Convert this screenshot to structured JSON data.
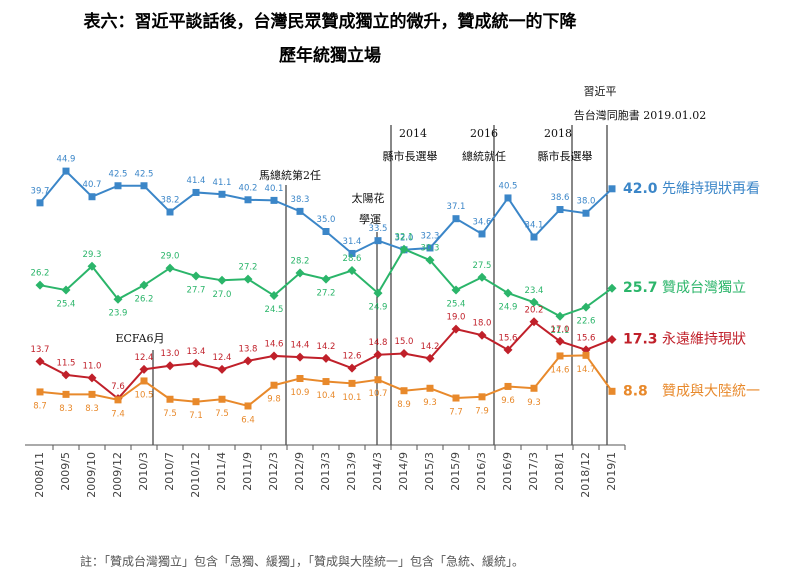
{
  "chart_data": {
    "type": "line",
    "title": "表六：習近平談話後，台灣民眾贊成獨立的微升，贊成統一的下降",
    "subtitle": "歷年統獨立場",
    "categories": [
      "2008/11",
      "2009/5",
      "2009/10",
      "2009/12",
      "2010/3",
      "2010/7",
      "2010/12",
      "2011/4",
      "2011/9",
      "2012/3",
      "2012/9",
      "2013/3",
      "2013/9",
      "2014/3",
      "2014/9",
      "2015/3",
      "2015/9",
      "2016/3",
      "2016/9",
      "2017/3",
      "2018/1",
      "2018/12",
      "2019/1"
    ],
    "series": [
      {
        "name": "先維持現狀再看",
        "color": "#3b86c8",
        "values": [
          39.7,
          44.9,
          40.7,
          42.5,
          42.5,
          38.2,
          41.4,
          41.1,
          40.2,
          40.1,
          38.3,
          35.0,
          31.4,
          33.5,
          32.0,
          32.3,
          37.1,
          34.6,
          40.5,
          34.1,
          38.6,
          38.0,
          42.0
        ],
        "value_labels": [
          "39.7",
          "44.9",
          "40.7",
          "42.5",
          "42.5",
          "38.2",
          "41.4",
          "41.1",
          "40.2",
          "40.1",
          "38.3",
          "35.0",
          "31.4",
          "33.5",
          "32.0",
          "32.3",
          "37.1",
          "34.6",
          "40.5",
          "34.1",
          "38.6",
          "38.0",
          "42.0"
        ]
      },
      {
        "name": "贊成台灣獨立",
        "color": "#2bb56a",
        "values": [
          26.2,
          25.4,
          29.3,
          23.9,
          26.2,
          29.0,
          27.7,
          27.0,
          27.2,
          24.5,
          28.2,
          27.2,
          28.6,
          24.9,
          32.1,
          30.3,
          25.4,
          27.5,
          24.9,
          23.4,
          21.1,
          22.6,
          25.7
        ],
        "value_labels": [
          "26.2",
          "25.4",
          "29.3",
          "23.9",
          "26.2",
          "29.0",
          "27.7",
          "27.0",
          "27.2",
          "24.5",
          "28.2",
          "27.2",
          "28.6",
          "24.9",
          "32.1",
          "30.3",
          "25.4",
          "27.5",
          "24.9",
          "23.4",
          "21.1",
          "22.6",
          "25.7"
        ]
      },
      {
        "name": "永遠維持現狀",
        "color": "#c0202a",
        "values": [
          13.7,
          11.5,
          11.0,
          7.6,
          12.4,
          13.0,
          13.4,
          12.4,
          13.8,
          14.6,
          14.4,
          14.2,
          12.6,
          14.8,
          15.0,
          14.2,
          19.0,
          18.0,
          15.6,
          20.2,
          17.0,
          15.6,
          17.3
        ],
        "value_labels": [
          "13.7",
          "11.5",
          "11.0",
          "7.6",
          "12.4",
          "13.0",
          "13.4",
          "12.4",
          "13.8",
          "14.6",
          "14.4",
          "14.2",
          "12.6",
          "14.8",
          "15.0",
          "14.2",
          "19.0",
          "18.0",
          "15.6",
          "20.2",
          "17.0",
          "15.6",
          "17.3"
        ]
      },
      {
        "name": "贊成與大陸統一",
        "color": "#e8892b",
        "values": [
          8.7,
          8.3,
          8.3,
          7.4,
          10.5,
          7.5,
          7.1,
          7.5,
          6.4,
          9.8,
          10.9,
          10.4,
          10.1,
          10.7,
          8.9,
          9.3,
          7.7,
          7.9,
          9.6,
          9.3,
          14.6,
          14.7,
          8.8
        ],
        "value_labels": [
          "8.7",
          "8.3",
          "8.3",
          "7.4",
          "10.5",
          "7.5",
          "7.1",
          "7.5",
          "6.4",
          "9.8",
          "10.9",
          "10.4",
          "10.1",
          "10.7",
          "8.9",
          "9.3",
          "7.7",
          "7.9",
          "9.6",
          "9.3",
          "14.6",
          "14.7",
          "8.8"
        ]
      }
    ],
    "annotations": [
      "ECFA6月",
      "馬總統第2任",
      "太陽花",
      "學運",
      "2014",
      "縣市長選舉",
      "2016",
      "總統就任",
      "2018",
      "縣市長選舉",
      "習近平",
      "告台灣同胞書 2019.01.02"
    ],
    "note": "註：「贊成台灣獨立」包含「急獨、緩獨」，「贊成與大陸統一」包含「急統、緩統」。"
  }
}
